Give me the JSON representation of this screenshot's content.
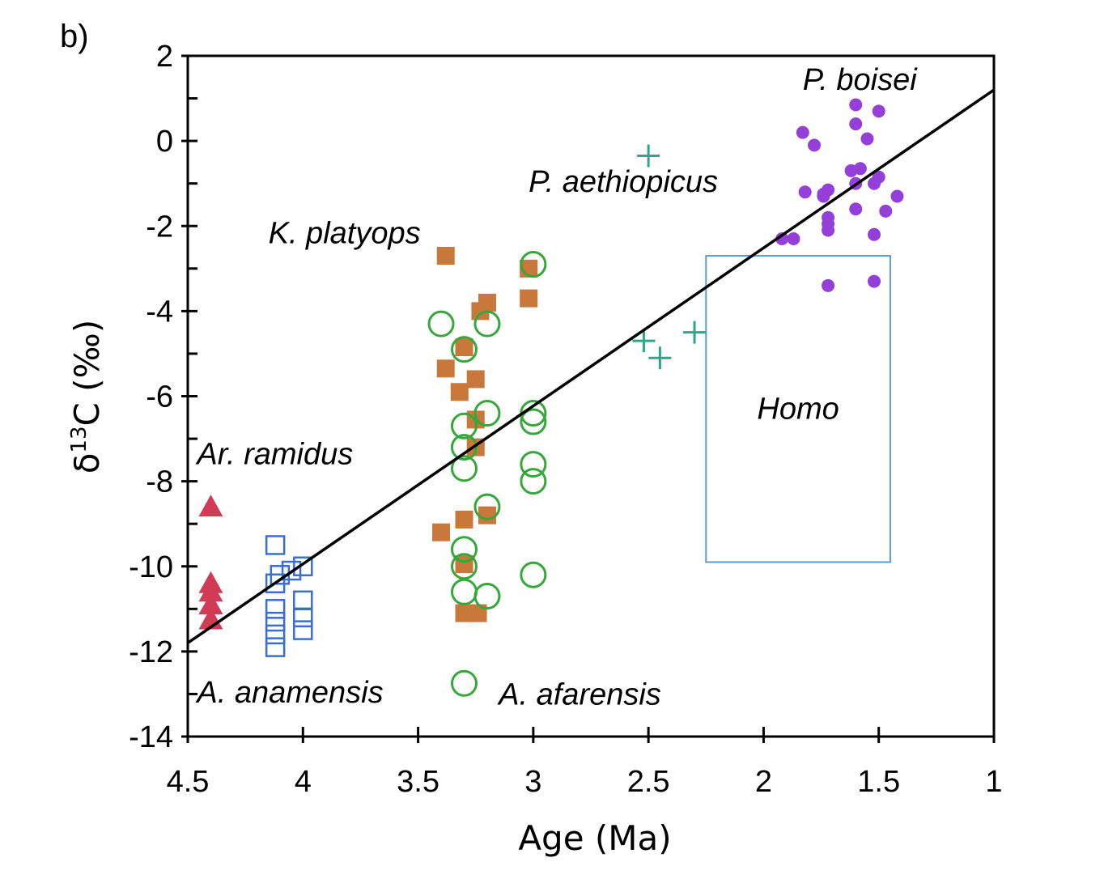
{
  "chart_data": {
    "type": "scatter",
    "panel_label": "b)",
    "xlabel": "Age (Ma)",
    "ylabel": "δ13C (‰)",
    "ylabel_parts": {
      "symbol": "δ",
      "superscript": "13",
      "rest": "C (‰)"
    },
    "xlim": [
      4.5,
      1
    ],
    "x_reversed": true,
    "ylim": [
      -14,
      2
    ],
    "x_ticks": [
      4.5,
      4,
      3.5,
      3,
      2.5,
      2,
      1.5,
      1
    ],
    "x_tick_labels": [
      "4.5",
      "4",
      "3.5",
      "3",
      "2.5",
      "2",
      "1.5",
      "1"
    ],
    "y_ticks": [
      2,
      0,
      -2,
      -4,
      -6,
      -8,
      -10,
      -12,
      -14
    ],
    "y_tick_labels": [
      "2",
      "0",
      "-2",
      "-4",
      "-6",
      "-8",
      "-10",
      "-12",
      "-14"
    ],
    "grid": false,
    "trend_line": {
      "x": [
        4.5,
        1
      ],
      "y": [
        -11.8,
        1.2
      ],
      "color": "#000000"
    },
    "homo_box": {
      "label": "Homo",
      "x_range": [
        2.25,
        1.45
      ],
      "y_range": [
        -9.9,
        -2.7
      ],
      "color": "#5b9bd5"
    },
    "annotations": [
      {
        "text": "P. boisei",
        "x": 1.83,
        "y": 1.2
      },
      {
        "text": "P. aethiopicus",
        "x": 3.02,
        "y": -1.2
      },
      {
        "text": "K. platyops",
        "x": 4.15,
        "y": -2.4
      },
      {
        "text": "Ar. ramidus",
        "x": 4.46,
        "y": -7.6
      },
      {
        "text": "A. anamensis",
        "x": 4.46,
        "y": -13.2
      },
      {
        "text": "A. afarensis",
        "x": 3.15,
        "y": -13.25
      }
    ],
    "afarensis_legend_marker": {
      "x": 3.3,
      "y": -12.75
    },
    "series": [
      {
        "name": "Ar. ramidus",
        "marker": "triangle",
        "color": "#d03c55",
        "points": [
          [
            4.4,
            -8.6
          ],
          [
            4.4,
            -10.4
          ],
          [
            4.4,
            -10.6
          ],
          [
            4.4,
            -10.9
          ],
          [
            4.4,
            -11.25
          ]
        ]
      },
      {
        "name": "A. anamensis",
        "marker": "open-square",
        "color": "#3a6fd0",
        "points": [
          [
            4.12,
            -9.5
          ],
          [
            4.12,
            -10.4
          ],
          [
            4.12,
            -11.0
          ],
          [
            4.12,
            -11.3
          ],
          [
            4.12,
            -11.6
          ],
          [
            4.12,
            -11.9
          ],
          [
            4.05,
            -10.1
          ],
          [
            4.0,
            -10.0
          ],
          [
            4.0,
            -10.8
          ],
          [
            4.0,
            -11.2
          ],
          [
            4.0,
            -11.5
          ],
          [
            4.1,
            -10.2
          ]
        ]
      },
      {
        "name": "K. platyops",
        "marker": "filled-square",
        "color": "#c8783a",
        "points": [
          [
            3.38,
            -2.7
          ],
          [
            3.02,
            -3.0
          ],
          [
            3.02,
            -3.7
          ],
          [
            3.2,
            -3.8
          ],
          [
            3.23,
            -4.0
          ],
          [
            3.3,
            -4.85
          ],
          [
            3.38,
            -5.35
          ],
          [
            3.25,
            -5.6
          ],
          [
            3.32,
            -5.9
          ],
          [
            3.25,
            -6.55
          ],
          [
            3.25,
            -7.2
          ],
          [
            3.2,
            -8.8
          ],
          [
            3.3,
            -8.9
          ],
          [
            3.4,
            -9.2
          ],
          [
            3.3,
            -9.95
          ],
          [
            3.3,
            -11.1
          ],
          [
            3.24,
            -11.1
          ]
        ]
      },
      {
        "name": "A. afarensis",
        "marker": "open-circle",
        "color": "#36a83a",
        "points": [
          [
            3.0,
            -2.9
          ],
          [
            3.2,
            -4.3
          ],
          [
            3.4,
            -4.3
          ],
          [
            3.3,
            -4.9
          ],
          [
            3.2,
            -6.4
          ],
          [
            3.0,
            -6.4
          ],
          [
            3.0,
            -6.6
          ],
          [
            3.3,
            -6.7
          ],
          [
            3.3,
            -7.2
          ],
          [
            3.0,
            -7.6
          ],
          [
            3.3,
            -7.7
          ],
          [
            3.0,
            -8.0
          ],
          [
            3.2,
            -8.6
          ],
          [
            3.3,
            -9.6
          ],
          [
            3.3,
            -10.0
          ],
          [
            3.0,
            -10.2
          ],
          [
            3.3,
            -10.6
          ],
          [
            3.2,
            -10.7
          ]
        ]
      },
      {
        "name": "P. aethiopicus",
        "marker": "plus",
        "color": "#2aa98a",
        "points": [
          [
            2.5,
            -0.35
          ],
          [
            2.52,
            -4.7
          ],
          [
            2.45,
            -5.1
          ],
          [
            2.3,
            -4.5
          ]
        ]
      },
      {
        "name": "P. boisei",
        "marker": "filled-circle",
        "color": "#9440d8",
        "points": [
          [
            1.6,
            0.85
          ],
          [
            1.5,
            0.7
          ],
          [
            1.6,
            0.4
          ],
          [
            1.83,
            0.2
          ],
          [
            1.78,
            -0.1
          ],
          [
            1.55,
            0.05
          ],
          [
            1.62,
            -0.7
          ],
          [
            1.58,
            -0.65
          ],
          [
            1.5,
            -0.85
          ],
          [
            1.52,
            -1.0
          ],
          [
            1.6,
            -1.0
          ],
          [
            1.72,
            -1.15
          ],
          [
            1.74,
            -1.25
          ],
          [
            1.82,
            -1.2
          ],
          [
            1.74,
            -1.3
          ],
          [
            1.42,
            -1.3
          ],
          [
            1.6,
            -1.6
          ],
          [
            1.47,
            -1.65
          ],
          [
            1.72,
            -1.8
          ],
          [
            1.72,
            -1.95
          ],
          [
            1.72,
            -2.1
          ],
          [
            1.52,
            -2.2
          ],
          [
            1.87,
            -2.3
          ],
          [
            1.92,
            -2.3
          ],
          [
            1.72,
            -3.4
          ],
          [
            1.52,
            -3.3
          ]
        ]
      }
    ]
  }
}
